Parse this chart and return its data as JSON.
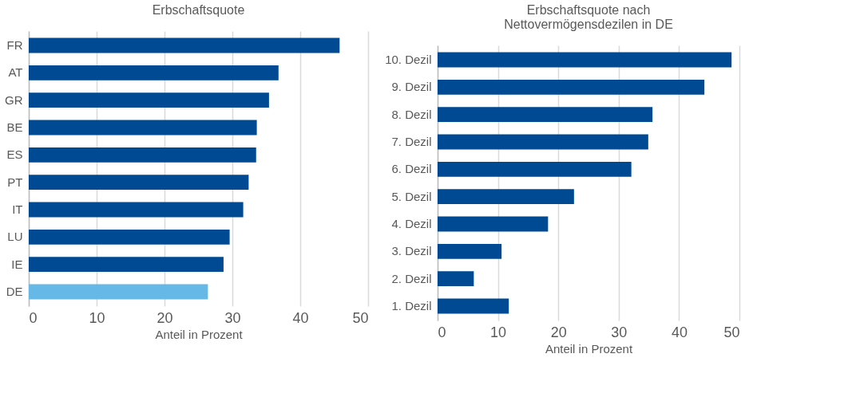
{
  "chart_data": [
    {
      "type": "bar",
      "orientation": "horizontal",
      "title": "Erbschaftsquote",
      "xlabel": "Anteil in Prozent",
      "categories": [
        "FR",
        "AT",
        "GR",
        "BE",
        "ES",
        "PT",
        "IT",
        "LU",
        "IE",
        "DE"
      ],
      "values": [
        45.8,
        36.8,
        35.4,
        33.6,
        33.5,
        32.4,
        31.6,
        29.6,
        28.7,
        26.4
      ],
      "colors": [
        "#004a93",
        "#004a93",
        "#004a93",
        "#004a93",
        "#004a93",
        "#004a93",
        "#004a93",
        "#004a93",
        "#004a93",
        "#66b8e6"
      ],
      "xlim": [
        0,
        50
      ],
      "xticks": [
        0,
        10,
        20,
        30,
        40,
        50
      ],
      "grid": "x"
    },
    {
      "type": "bar",
      "orientation": "horizontal",
      "title": "Erbschaftsquote nach Nettovermögensdezilen in DE",
      "xlabel": "Anteil in Prozent",
      "categories": [
        "10. Dezil",
        "9. Dezil",
        "8. Dezil",
        "7. Dezil",
        "6. Dezil",
        "5. Dezil",
        "4. Dezil",
        "3. Dezil",
        "2. Dezil",
        "1. Dezil"
      ],
      "values": [
        48.7,
        44.2,
        35.6,
        34.9,
        32.1,
        22.6,
        18.3,
        10.6,
        6.0,
        11.8
      ],
      "colors": [
        "#004a93",
        "#004a93",
        "#004a93",
        "#004a93",
        "#004a93",
        "#004a93",
        "#004a93",
        "#004a93",
        "#004a93",
        "#004a93"
      ],
      "xlim": [
        0,
        50
      ],
      "xticks": [
        0,
        10,
        20,
        30,
        40,
        50
      ],
      "grid": "x"
    }
  ]
}
